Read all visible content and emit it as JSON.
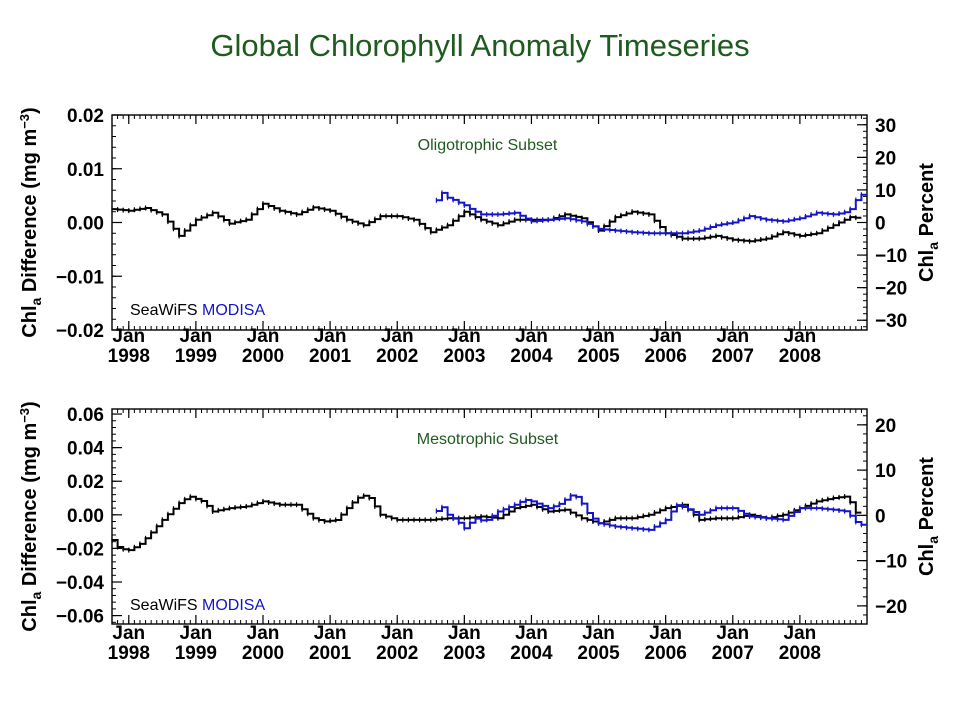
{
  "title": "Global Chlorophyll Anomaly Timeseries",
  "colors": {
    "title": "#1f5a1f",
    "seawifs": "#000000",
    "modisa": "#1414c8",
    "subset_label": "#1f5a1f"
  },
  "chart_data": [
    {
      "type": "line",
      "subtitle": "Oligotrophic Subset",
      "ylabel": "Chl_a Difference (mg m^-3)",
      "y2label": "Chl_a Percent",
      "xlim": [
        1997.75,
        2009.0
      ],
      "ylim": [
        -0.02,
        0.02
      ],
      "y2lim": [
        -33,
        33
      ],
      "x_ticks": [
        {
          "x": 1998.0,
          "label": "Jan\n1998"
        },
        {
          "x": 1999.0,
          "label": "Jan\n1999"
        },
        {
          "x": 2000.0,
          "label": "Jan\n2000"
        },
        {
          "x": 2001.0,
          "label": "Jan\n2001"
        },
        {
          "x": 2002.0,
          "label": "Jan\n2002"
        },
        {
          "x": 2003.0,
          "label": "Jan\n2003"
        },
        {
          "x": 2004.0,
          "label": "Jan\n2004"
        },
        {
          "x": 2005.0,
          "label": "Jan\n2005"
        },
        {
          "x": 2006.0,
          "label": "Jan\n2006"
        },
        {
          "x": 2007.0,
          "label": "Jan\n2007"
        },
        {
          "x": 2008.0,
          "label": "Jan\n2008"
        }
      ],
      "y_ticks": [
        {
          "v": 0.02,
          "label": "0.02"
        },
        {
          "v": 0.01,
          "label": "0.01"
        },
        {
          "v": 0.0,
          "label": "0.00"
        },
        {
          "v": -0.01,
          "label": "−0.01"
        },
        {
          "v": -0.02,
          "label": "−0.02"
        }
      ],
      "y2_ticks": [
        {
          "v": 30,
          "label": "30"
        },
        {
          "v": 20,
          "label": "20"
        },
        {
          "v": 10,
          "label": "10"
        },
        {
          "v": 0,
          "label": "0"
        },
        {
          "v": -10,
          "label": "−10"
        },
        {
          "v": -20,
          "label": "−20"
        },
        {
          "v": -30,
          "label": "−30"
        }
      ],
      "legend": [
        "SeaWiFS",
        "MODISA"
      ],
      "series": [
        {
          "name": "SeaWiFS",
          "color": "#000000",
          "points": [
            [
              1997.75,
              0.0025
            ],
            [
              1998.0,
              0.0022
            ],
            [
              1998.25,
              0.0027
            ],
            [
              1998.5,
              0.0015
            ],
            [
              1998.75,
              -0.0025
            ],
            [
              1999.0,
              0.0005
            ],
            [
              1999.25,
              0.0018
            ],
            [
              1999.5,
              -0.0002
            ],
            [
              1999.75,
              0.0005
            ],
            [
              2000.0,
              0.0035
            ],
            [
              2000.25,
              0.0022
            ],
            [
              2000.5,
              0.0015
            ],
            [
              2000.75,
              0.0028
            ],
            [
              2001.0,
              0.0022
            ],
            [
              2001.25,
              0.0005
            ],
            [
              2001.5,
              -0.0005
            ],
            [
              2001.75,
              0.0012
            ],
            [
              2002.0,
              0.0012
            ],
            [
              2002.25,
              0.0005
            ],
            [
              2002.5,
              -0.0018
            ],
            [
              2002.75,
              -0.0005
            ],
            [
              2003.0,
              0.002
            ],
            [
              2003.25,
              0.0005
            ],
            [
              2003.5,
              -0.0005
            ],
            [
              2003.75,
              0.0005
            ],
            [
              2004.0,
              0.0005
            ],
            [
              2004.25,
              0.0005
            ],
            [
              2004.5,
              0.0015
            ],
            [
              2004.75,
              0.0008
            ],
            [
              2005.0,
              -0.0015
            ],
            [
              2005.25,
              0.001
            ],
            [
              2005.5,
              0.002
            ],
            [
              2005.75,
              0.0015
            ],
            [
              2006.0,
              -0.002
            ],
            [
              2006.25,
              -0.003
            ],
            [
              2006.5,
              -0.003
            ],
            [
              2006.75,
              -0.0025
            ],
            [
              2007.0,
              -0.0032
            ],
            [
              2007.25,
              -0.0035
            ],
            [
              2007.5,
              -0.003
            ],
            [
              2007.75,
              -0.0018
            ],
            [
              2008.0,
              -0.0025
            ],
            [
              2008.25,
              -0.002
            ],
            [
              2008.5,
              -0.0005
            ],
            [
              2008.75,
              0.001
            ],
            [
              2008.9,
              0.0008
            ]
          ]
        },
        {
          "name": "MODISA",
          "color": "#1414c8",
          "points": [
            [
              2002.55,
              0.002
            ],
            [
              2002.62,
              0.0065
            ],
            [
              2002.7,
              0.0048
            ],
            [
              2002.8,
              0.0044
            ],
            [
              2002.9,
              0.0038
            ],
            [
              2003.0,
              0.0032
            ],
            [
              2003.1,
              0.0024
            ],
            [
              2003.25,
              0.0015
            ],
            [
              2003.5,
              0.0015
            ],
            [
              2003.75,
              0.0018
            ],
            [
              2004.0,
              0.0002
            ],
            [
              2004.25,
              0.0005
            ],
            [
              2004.5,
              0.0008
            ],
            [
              2004.75,
              0.0002
            ],
            [
              2005.0,
              -0.0012
            ],
            [
              2005.25,
              -0.0015
            ],
            [
              2005.5,
              -0.0018
            ],
            [
              2005.75,
              -0.002
            ],
            [
              2006.0,
              -0.002
            ],
            [
              2006.25,
              -0.002
            ],
            [
              2006.5,
              -0.0015
            ],
            [
              2006.75,
              -0.0005
            ],
            [
              2007.0,
              0.0
            ],
            [
              2007.25,
              0.0012
            ],
            [
              2007.5,
              0.0005
            ],
            [
              2007.75,
              0.0002
            ],
            [
              2008.0,
              0.0008
            ],
            [
              2008.25,
              0.0018
            ],
            [
              2008.5,
              0.0015
            ],
            [
              2008.65,
              0.0018
            ],
            [
              2008.75,
              0.0025
            ],
            [
              2008.85,
              0.0045
            ],
            [
              2008.92,
              0.0052
            ]
          ]
        }
      ]
    },
    {
      "type": "line",
      "subtitle": "Mesotrophic Subset",
      "ylabel": "Chl_a Difference (mg m^-3)",
      "y2label": "Chl_a Percent",
      "xlim": [
        1997.75,
        2009.0
      ],
      "ylim": [
        -0.065,
        0.063
      ],
      "y2lim": [
        -24,
        23.5
      ],
      "x_ticks": [
        {
          "x": 1998.0,
          "label": "Jan\n1998"
        },
        {
          "x": 1999.0,
          "label": "Jan\n1999"
        },
        {
          "x": 2000.0,
          "label": "Jan\n2000"
        },
        {
          "x": 2001.0,
          "label": "Jan\n2001"
        },
        {
          "x": 2002.0,
          "label": "Jan\n2002"
        },
        {
          "x": 2003.0,
          "label": "Jan\n2003"
        },
        {
          "x": 2004.0,
          "label": "Jan\n2004"
        },
        {
          "x": 2005.0,
          "label": "Jan\n2005"
        },
        {
          "x": 2006.0,
          "label": "Jan\n2006"
        },
        {
          "x": 2007.0,
          "label": "Jan\n2007"
        },
        {
          "x": 2008.0,
          "label": "Jan\n2008"
        }
      ],
      "y_ticks": [
        {
          "v": 0.06,
          "label": "0.06"
        },
        {
          "v": 0.04,
          "label": "0.04"
        },
        {
          "v": 0.02,
          "label": "0.02"
        },
        {
          "v": 0.0,
          "label": "0.00"
        },
        {
          "v": -0.02,
          "label": "−0.02"
        },
        {
          "v": -0.04,
          "label": "−0.04"
        },
        {
          "v": -0.06,
          "label": "−0.06"
        }
      ],
      "y2_ticks": [
        {
          "v": 20,
          "label": "20"
        },
        {
          "v": 10,
          "label": "10"
        },
        {
          "v": 0,
          "label": "0"
        },
        {
          "v": -10,
          "label": "−10"
        },
        {
          "v": -20,
          "label": "−20"
        }
      ],
      "legend": [
        "SeaWiFS",
        "MODISA"
      ],
      "series": [
        {
          "name": "SeaWiFS",
          "color": "#000000",
          "points": [
            [
              1997.75,
              -0.015
            ],
            [
              1997.85,
              -0.02
            ],
            [
              1998.0,
              -0.021
            ],
            [
              1998.15,
              -0.018
            ],
            [
              1998.3,
              -0.012
            ],
            [
              1998.5,
              -0.003
            ],
            [
              1998.75,
              0.007
            ],
            [
              1998.9,
              0.011
            ],
            [
              1999.1,
              0.008
            ],
            [
              1999.25,
              0.002
            ],
            [
              1999.5,
              0.004
            ],
            [
              1999.75,
              0.005
            ],
            [
              2000.0,
              0.008
            ],
            [
              2000.25,
              0.006
            ],
            [
              2000.5,
              0.006
            ],
            [
              2000.75,
              -0.002
            ],
            [
              2000.9,
              -0.004
            ],
            [
              2001.1,
              -0.003
            ],
            [
              2001.25,
              0.004
            ],
            [
              2001.4,
              0.01
            ],
            [
              2001.55,
              0.012
            ],
            [
              2001.75,
              0.0
            ],
            [
              2002.0,
              -0.003
            ],
            [
              2002.25,
              -0.003
            ],
            [
              2002.5,
              -0.003
            ],
            [
              2002.75,
              -0.002
            ],
            [
              2003.0,
              -0.002
            ],
            [
              2003.25,
              -0.001
            ],
            [
              2003.5,
              -0.002
            ],
            [
              2003.75,
              0.004
            ],
            [
              2004.0,
              0.006
            ],
            [
              2004.25,
              0.002
            ],
            [
              2004.5,
              0.003
            ],
            [
              2004.75,
              -0.002
            ],
            [
              2005.0,
              -0.005
            ],
            [
              2005.25,
              -0.002
            ],
            [
              2005.5,
              -0.002
            ],
            [
              2005.75,
              0.0
            ],
            [
              2006.0,
              0.004
            ],
            [
              2006.25,
              0.006
            ],
            [
              2006.5,
              -0.003
            ],
            [
              2006.75,
              -0.002
            ],
            [
              2007.0,
              -0.002
            ],
            [
              2007.25,
              0.0
            ],
            [
              2007.5,
              -0.002
            ],
            [
              2007.75,
              0.0
            ],
            [
              2008.0,
              0.004
            ],
            [
              2008.25,
              0.008
            ],
            [
              2008.5,
              0.01
            ],
            [
              2008.7,
              0.011
            ],
            [
              2008.8,
              0.004
            ],
            [
              2008.9,
              -0.004
            ]
          ]
        },
        {
          "name": "MODISA",
          "color": "#1414c8",
          "points": [
            [
              2002.55,
              -0.002
            ],
            [
              2002.62,
              0.007
            ],
            [
              2002.75,
              0.0
            ],
            [
              2002.9,
              -0.004
            ],
            [
              2003.0,
              -0.008
            ],
            [
              2003.15,
              -0.002
            ],
            [
              2003.3,
              -0.004
            ],
            [
              2003.5,
              0.002
            ],
            [
              2003.75,
              0.006
            ],
            [
              2003.9,
              0.009
            ],
            [
              2004.0,
              0.008
            ],
            [
              2004.25,
              0.004
            ],
            [
              2004.4,
              0.006
            ],
            [
              2004.6,
              0.012
            ],
            [
              2004.7,
              0.01
            ],
            [
              2004.85,
              0.0
            ],
            [
              2005.0,
              -0.005
            ],
            [
              2005.25,
              -0.007
            ],
            [
              2005.5,
              -0.008
            ],
            [
              2005.75,
              -0.009
            ],
            [
              2006.0,
              -0.003
            ],
            [
              2006.15,
              0.006
            ],
            [
              2006.3,
              0.004
            ],
            [
              2006.5,
              0.0
            ],
            [
              2006.75,
              0.004
            ],
            [
              2007.0,
              0.004
            ],
            [
              2007.25,
              -0.001
            ],
            [
              2007.5,
              -0.002
            ],
            [
              2007.75,
              -0.003
            ],
            [
              2008.0,
              0.004
            ],
            [
              2008.25,
              0.004
            ],
            [
              2008.5,
              0.003
            ],
            [
              2008.7,
              0.002
            ],
            [
              2008.82,
              -0.004
            ],
            [
              2008.92,
              -0.006
            ]
          ]
        }
      ]
    }
  ]
}
